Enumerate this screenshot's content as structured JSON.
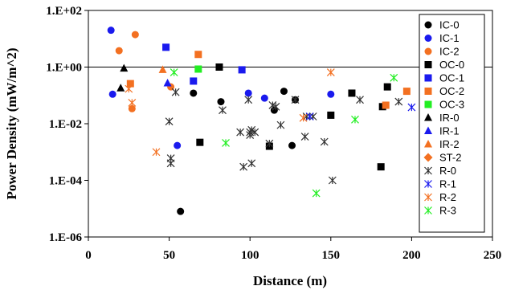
{
  "chart_data": {
    "type": "scatter",
    "xlabel": "Distance (m)",
    "ylabel": "Power Density (mW/m^2)",
    "xlim": [
      0,
      250
    ],
    "ylim_log10": [
      -6,
      2
    ],
    "y_scale": "log",
    "x_ticks": [
      "0",
      "50",
      "100",
      "150",
      "200",
      "250"
    ],
    "y_ticks": [
      "1.E-06",
      "1.E-04",
      "1.E-02",
      "1.E+00",
      "1.E+02"
    ],
    "reference_line_y": 1,
    "grid": false,
    "legend_position": "right",
    "series": [
      {
        "name": "IC-0",
        "marker": "circle",
        "color": "#000000",
        "x": [
          57,
          65,
          82,
          115,
          121,
          126,
          128
        ],
        "y": [
          8e-06,
          0.12,
          0.06,
          0.03,
          0.14,
          0.0017,
          0.07
        ]
      },
      {
        "name": "IC-1",
        "marker": "circle",
        "color": "#1a1aee",
        "x": [
          14,
          15,
          55,
          99,
          109,
          150
        ],
        "y": [
          20,
          0.11,
          0.0017,
          0.12,
          0.08,
          0.11
        ]
      },
      {
        "name": "IC-2",
        "marker": "circle",
        "color": "#f37021",
        "x": [
          19,
          27,
          29,
          51
        ],
        "y": [
          3.8,
          0.034,
          14,
          0.2
        ]
      },
      {
        "name": "OC-0",
        "marker": "square",
        "color": "#000000",
        "x": [
          69,
          81,
          112,
          150,
          163,
          181,
          182,
          185
        ],
        "y": [
          0.0022,
          1,
          0.0016,
          0.02,
          0.12,
          0.0003,
          0.04,
          0.2
        ]
      },
      {
        "name": "OC-1",
        "marker": "square",
        "color": "#1a1aee",
        "x": [
          48,
          65,
          95
        ],
        "y": [
          5,
          0.32,
          0.8
        ]
      },
      {
        "name": "OC-2",
        "marker": "square",
        "color": "#f37021",
        "x": [
          26,
          68,
          184,
          197
        ],
        "y": [
          0.26,
          2.8,
          0.045,
          0.14
        ]
      },
      {
        "name": "OC-3",
        "marker": "square",
        "color": "#22ee22",
        "x": [
          68
        ],
        "y": [
          0.85
        ]
      },
      {
        "name": "IR-0",
        "marker": "triangle",
        "color": "#000000",
        "x": [
          20,
          22
        ],
        "y": [
          0.18,
          0.9
        ]
      },
      {
        "name": "IR-1",
        "marker": "triangle",
        "color": "#1a1aee",
        "x": [
          49
        ],
        "y": [
          0.27
        ]
      },
      {
        "name": "IR-2",
        "marker": "triangle",
        "color": "#f37021",
        "x": [
          46
        ],
        "y": [
          0.8
        ]
      },
      {
        "name": "ST-2",
        "marker": "diamond",
        "color": "#f37021",
        "x": [],
        "y": []
      },
      {
        "name": "R-0",
        "marker": "x",
        "color": "#333333",
        "x": [
          50,
          51,
          51,
          54,
          83,
          94,
          96,
          99,
          100,
          100,
          101,
          101,
          103,
          112,
          114,
          116,
          119,
          128,
          134,
          135,
          139,
          146,
          151,
          168,
          192
        ],
        "y": [
          0.012,
          0.0006,
          0.0004,
          0.13,
          0.03,
          0.005,
          0.0003,
          0.07,
          0.005,
          0.004,
          0.006,
          0.0004,
          0.005,
          0.002,
          0.045,
          0.04,
          0.009,
          0.07,
          0.0035,
          0.018,
          0.018,
          0.0023,
          0.0001,
          0.07,
          0.06
        ]
      },
      {
        "name": "R-1",
        "marker": "x",
        "color": "#1a1aee",
        "x": [
          137,
          200
        ],
        "y": [
          0.018,
          0.038
        ]
      },
      {
        "name": "R-2",
        "marker": "x",
        "color": "#f37021",
        "x": [
          25,
          27,
          42,
          133,
          150
        ],
        "y": [
          0.17,
          0.055,
          0.001,
          0.016,
          0.65
        ]
      },
      {
        "name": "R-3",
        "marker": "x",
        "color": "#22ee22",
        "x": [
          53,
          85,
          141,
          165,
          189
        ],
        "y": [
          0.65,
          0.0021,
          3.5e-05,
          0.014,
          0.42
        ]
      }
    ]
  }
}
